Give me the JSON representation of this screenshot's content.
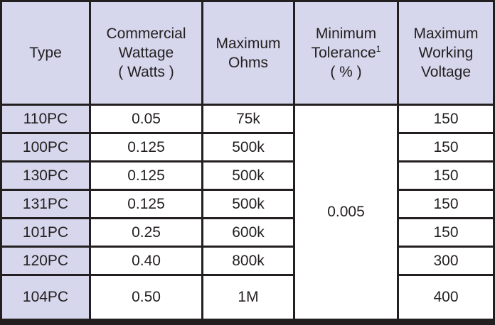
{
  "headers": {
    "type": [
      "Type"
    ],
    "wattage": [
      "Commercial",
      "Wattage",
      "( Watts )"
    ],
    "ohms": [
      "Maximum",
      "Ohms"
    ],
    "tolerance": [
      "Minimum",
      "Tolerance",
      "( % )"
    ],
    "tolerance_footnote": "1",
    "voltage": [
      "Maximum",
      "Working",
      "Voltage"
    ]
  },
  "rows": [
    {
      "type": "110PC",
      "wattage": "0.05",
      "ohms": "75k",
      "voltage": "150"
    },
    {
      "type": "100PC",
      "wattage": "0.125",
      "ohms": "500k",
      "voltage": "150"
    },
    {
      "type": "130PC",
      "wattage": "0.125",
      "ohms": "500k",
      "voltage": "150"
    },
    {
      "type": "131PC",
      "wattage": "0.125",
      "ohms": "500k",
      "voltage": "150"
    },
    {
      "type": "101PC",
      "wattage": "0.25",
      "ohms": "600k",
      "voltage": "150"
    },
    {
      "type": "120PC",
      "wattage": "0.40",
      "ohms": "800k",
      "voltage": "300"
    },
    {
      "type": "104PC",
      "wattage": "0.50",
      "ohms": "1M",
      "voltage": "400"
    }
  ],
  "shared_tolerance": "0.005",
  "colors": {
    "header_bg": "#d6d6ec",
    "grid": "#231f20",
    "cell_bg": "#ffffff"
  }
}
